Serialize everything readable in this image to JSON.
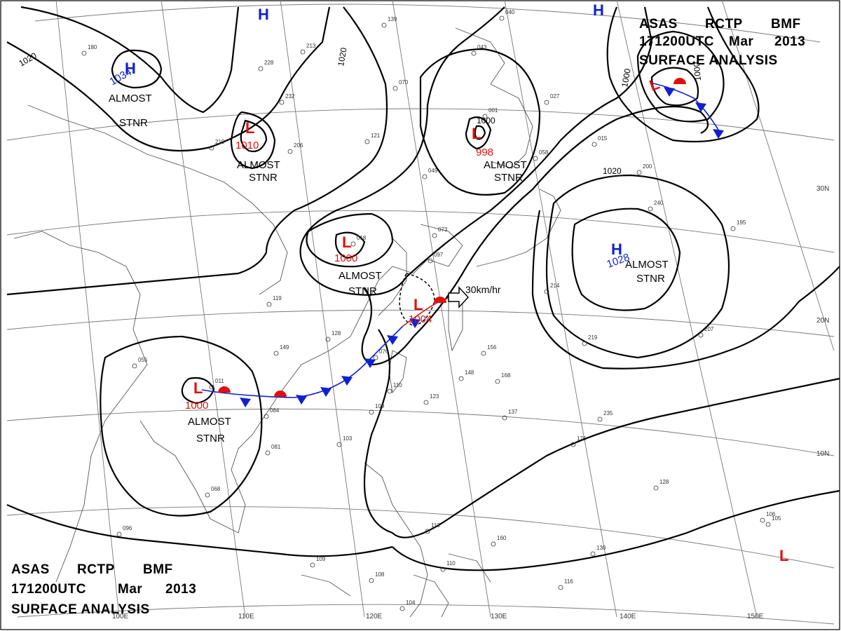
{
  "header_top": {
    "line1": [
      "ASAS",
      "RCTP",
      "BMF"
    ],
    "line2": [
      "171200UTC",
      "Mar",
      "2013"
    ],
    "line3": "SURFACE  ANALYSIS"
  },
  "header_bottom": {
    "line1": [
      "ASAS",
      "RCTP",
      "BMF"
    ],
    "line2": [
      "171200UTC",
      "Mar",
      "2013"
    ],
    "line3": "SURFACE  ANALYSIS"
  },
  "pressure_centers": [
    {
      "type": "H",
      "value": "1034",
      "note": "ALMOST|STNR"
    },
    {
      "type": "L",
      "value": "1010",
      "note": "ALMOST|STNR"
    },
    {
      "type": "L",
      "value": "998",
      "note": "ALMOST|STNR"
    },
    {
      "type": "L",
      "value": "1000",
      "note": "ALMOST|STNR"
    },
    {
      "type": "L",
      "value": "1004",
      "note": ""
    },
    {
      "type": "L",
      "value": "1000",
      "note": "ALMOST|STNR"
    },
    {
      "type": "H",
      "value": "1028",
      "note": "ALMOST|STNR"
    },
    {
      "type": "H",
      "value": "",
      "note": ""
    },
    {
      "type": "H",
      "value": "",
      "note": ""
    },
    {
      "type": "L",
      "value": "",
      "note": ""
    },
    {
      "type": "L",
      "value": "",
      "note": ""
    }
  ],
  "motion_label": "30km/hr",
  "isobar_labels": [
    "1020",
    "1020",
    "1000",
    "1000",
    "1020",
    "1000"
  ],
  "longitude_labels": [
    "100E",
    "110E",
    "120E",
    "130E",
    "140E",
    "150E"
  ],
  "latitude_labels": [
    "30N",
    "20N",
    "10N"
  ],
  "station_values": [
    "139",
    "040",
    "213",
    "228",
    "232",
    "219",
    "206",
    "121",
    "070",
    "043",
    "001",
    "049",
    "058",
    "018",
    "073",
    "097",
    "119",
    "128",
    "149",
    "076",
    "055",
    "011",
    "084",
    "081",
    "110",
    "109",
    "103",
    "123",
    "137",
    "148",
    "156",
    "168",
    "214",
    "200",
    "240",
    "195",
    "219",
    "176",
    "128",
    "106",
    "068",
    "096",
    "109",
    "108",
    "104",
    "113",
    "110",
    "160",
    "130",
    "116",
    "105",
    "180",
    "015",
    "027",
    "235",
    "207"
  ],
  "colors": {
    "high": "#1020d0",
    "low": "#e01010",
    "cold_front": "#1020d0",
    "warm_front": "#e01010",
    "isobar": "#000000",
    "geography": "#555555"
  },
  "icons": [
    "high-pressure-icon",
    "low-pressure-icon",
    "cold-front-icon",
    "warm-front-icon",
    "motion-arrow-icon",
    "station-model-icon"
  ]
}
